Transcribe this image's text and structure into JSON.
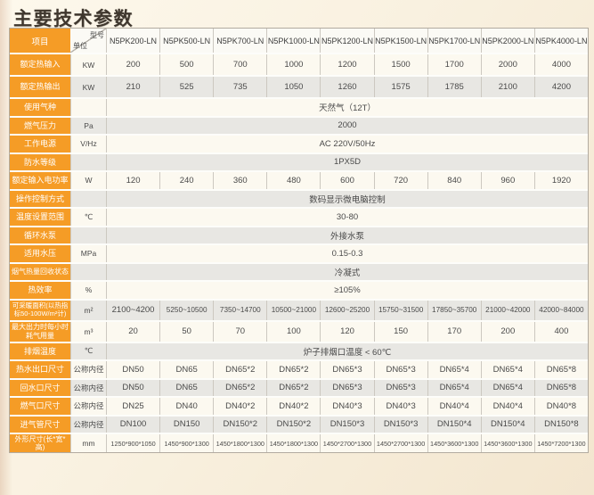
{
  "page_title": "主要技术参数",
  "colors": {
    "accent_orange": "#f59c26",
    "row_cream": "#fcf9f0",
    "row_gray": "#e8e7e3",
    "page_background": "#f9f1e0"
  },
  "table": {
    "corner": {
      "item": "项目",
      "model": "型号",
      "unit": "单位"
    },
    "models": [
      "N5PK200-LN",
      "N5PK500-LN",
      "N5PK700-LN",
      "N5PK1000-LN",
      "N5PK1200-LN",
      "N5PK1500-LN",
      "N5PK1700-LN",
      "N5PK2000-LN",
      "N5PK4000-LN"
    ],
    "rows": [
      {
        "label": "额定热输入",
        "unit": "KW",
        "values": [
          "200",
          "500",
          "700",
          "1000",
          "1200",
          "1500",
          "1700",
          "2000",
          "4000"
        ]
      },
      {
        "label": "额定热输出",
        "unit": "KW",
        "values": [
          "210",
          "525",
          "735",
          "1050",
          "1260",
          "1575",
          "1785",
          "2100",
          "4200"
        ]
      },
      {
        "label": "使用气种",
        "unit": "",
        "span": "天然气（12T）"
      },
      {
        "label": "燃气压力",
        "unit": "Pa",
        "span": "2000"
      },
      {
        "label": "工作电源",
        "unit": "V/Hz",
        "span": "AC 220V/50Hz"
      },
      {
        "label": "防水等级",
        "unit": "",
        "span": "1PX5D"
      },
      {
        "label": "额定输入电功率",
        "unit": "W",
        "values": [
          "120",
          "240",
          "360",
          "480",
          "600",
          "720",
          "840",
          "960",
          "1920"
        ]
      },
      {
        "label": "操作控制方式",
        "unit": "",
        "span": "数码显示微电脑控制"
      },
      {
        "label": "温度设置范围",
        "unit": "℃",
        "span": "30-80"
      },
      {
        "label": "循环水泵",
        "unit": "",
        "span": "外接水泵"
      },
      {
        "label": "适用水压",
        "unit": "MPa",
        "span": "0.15-0.3"
      },
      {
        "label": "烟气热量回收状态",
        "unit": "",
        "span": "冷凝式"
      },
      {
        "label": "热效率",
        "unit": "%",
        "span": "≥105%"
      },
      {
        "label": "可采暖面积(以热指标50-100W/m²计)",
        "unit": "m²",
        "values": [
          "2100~4200",
          "5250~10500",
          "7350~14700",
          "10500~21000",
          "12600~25200",
          "15750~31500",
          "17850~35700",
          "21000~42000",
          "42000~84000"
        ]
      },
      {
        "label": "最大出力时每小时耗气用量",
        "unit": "m³",
        "values": [
          "20",
          "50",
          "70",
          "100",
          "120",
          "150",
          "170",
          "200",
          "400"
        ]
      },
      {
        "label": "排烟温度",
        "unit": "℃",
        "span": "炉子排烟口温度 < 60℃"
      },
      {
        "label": "热水出口尺寸",
        "unit": "公称内径",
        "values": [
          "DN50",
          "DN65",
          "DN65*2",
          "DN65*2",
          "DN65*3",
          "DN65*3",
          "DN65*4",
          "DN65*4",
          "DN65*8"
        ]
      },
      {
        "label": "回水口尺寸",
        "unit": "公称内径",
        "values": [
          "DN50",
          "DN65",
          "DN65*2",
          "DN65*2",
          "DN65*3",
          "DN65*3",
          "DN65*4",
          "DN65*4",
          "DN65*8"
        ]
      },
      {
        "label": "燃气口尺寸",
        "unit": "公称内径",
        "values": [
          "DN25",
          "DN40",
          "DN40*2",
          "DN40*2",
          "DN40*3",
          "DN40*3",
          "DN40*4",
          "DN40*4",
          "DN40*8"
        ]
      },
      {
        "label": "进气管尺寸",
        "unit": "公称内径",
        "values": [
          "DN100",
          "DN150",
          "DN150*2",
          "DN150*2",
          "DN150*3",
          "DN150*3",
          "DN150*4",
          "DN150*4",
          "DN150*8"
        ]
      },
      {
        "label": "外形尺寸(长*宽*高)",
        "unit": "mm",
        "values": [
          "1250*900*1050",
          "1450*900*1300",
          "1450*1800*1300",
          "1450*1800*1300",
          "1450*2700*1300",
          "1450*2700*1300",
          "1450*3600*1300",
          "1450*3600*1300",
          "1450*7200*1300"
        ]
      }
    ]
  }
}
